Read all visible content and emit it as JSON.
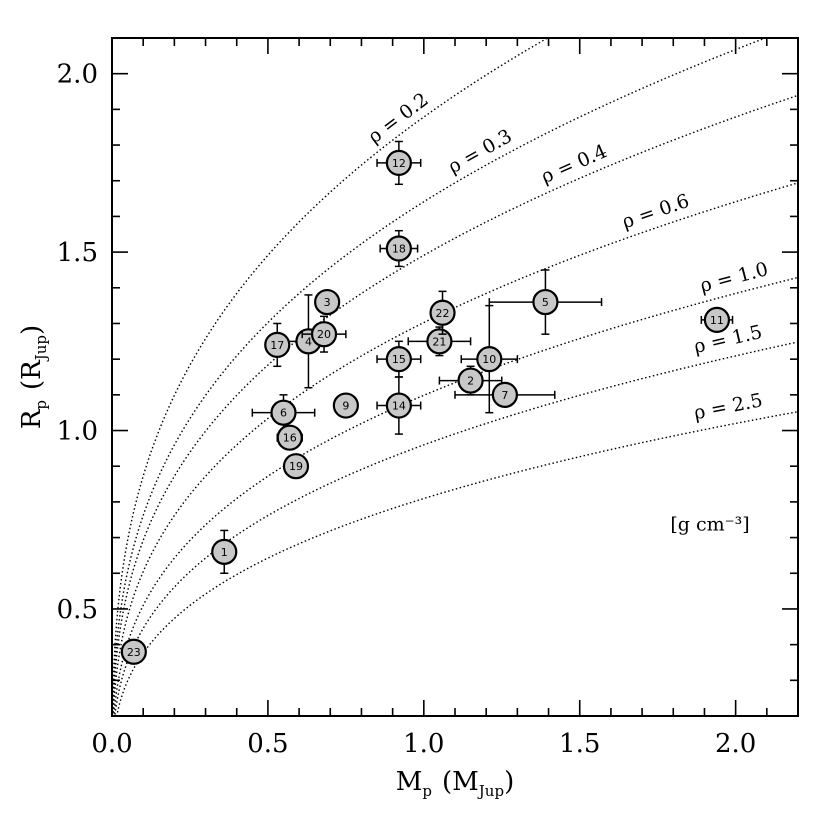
{
  "chart_data": {
    "type": "scatter",
    "title": "",
    "xlabel": {
      "main": "M",
      "sub": "p",
      "unit_prefix": "(M",
      "unit_sub": "Jup",
      "unit_suffix": ")"
    },
    "ylabel": {
      "main": "R",
      "sub": "p",
      "unit_prefix": "(R",
      "unit_sub": "Jup",
      "unit_suffix": ")"
    },
    "xlim": [
      0.0,
      2.2
    ],
    "ylim": [
      0.2,
      2.1
    ],
    "x_ticks": [
      0.0,
      0.5,
      1.0,
      1.5,
      2.0
    ],
    "x_tick_labels": [
      "0.0",
      "0.5",
      "1.0",
      "1.5",
      "2.0"
    ],
    "y_ticks": [
      0.5,
      1.0,
      1.5,
      2.0
    ],
    "y_tick_labels": [
      "0.5",
      "1.0",
      "1.5",
      "2.0"
    ],
    "x_minor_step": 0.1,
    "y_minor_step": 0.1,
    "grid": false,
    "density_curves": [
      {
        "rho": 0.2,
        "label": "ρ = 0.2"
      },
      {
        "rho": 0.3,
        "label": "ρ = 0.3"
      },
      {
        "rho": 0.4,
        "label": "ρ = 0.4"
      },
      {
        "rho": 0.6,
        "label": "ρ = 0.6"
      },
      {
        "rho": 1.0,
        "label": "ρ = 1.0"
      },
      {
        "rho": 1.5,
        "label": "ρ = 1.5"
      },
      {
        "rho": 2.5,
        "label": "ρ = 2.5"
      }
    ],
    "density_units_label": "[g cm⁻³]",
    "points": [
      {
        "id": "1",
        "x": 0.36,
        "y": 0.66,
        "xerr": 0.02,
        "yerr": 0.06
      },
      {
        "id": "2",
        "x": 1.15,
        "y": 1.14,
        "xerr": 0.1,
        "yerr": 0.04
      },
      {
        "id": "3",
        "x": 0.69,
        "y": 1.36,
        "xerr": 0.02,
        "yerr": 0.02
      },
      {
        "id": "4",
        "x": 0.63,
        "y": 1.25,
        "xerr": 0.07,
        "yerr": 0.13
      },
      {
        "id": "5",
        "x": 1.39,
        "y": 1.36,
        "xerr": 0.18,
        "yerr": 0.09
      },
      {
        "id": "6",
        "x": 0.55,
        "y": 1.05,
        "xerr": 0.1,
        "yerr": 0.05
      },
      {
        "id": "7",
        "x": 1.26,
        "y": 1.1,
        "xerr": 0.16,
        "yerr": 0.02
      },
      {
        "id": "9",
        "x": 0.75,
        "y": 1.07,
        "xerr": 0.02,
        "yerr": 0.02
      },
      {
        "id": "10",
        "x": 1.21,
        "y": 1.2,
        "xerr": 0.09,
        "yerr": 0.15
      },
      {
        "id": "11",
        "x": 1.94,
        "y": 1.31,
        "xerr": 0.05,
        "yerr": 0.02
      },
      {
        "id": "12",
        "x": 0.92,
        "y": 1.75,
        "xerr": 0.07,
        "yerr": 0.06
      },
      {
        "id": "14",
        "x": 0.92,
        "y": 1.07,
        "xerr": 0.07,
        "yerr": 0.08
      },
      {
        "id": "15",
        "x": 0.92,
        "y": 1.2,
        "xerr": 0.07,
        "yerr": 0.05
      },
      {
        "id": "16",
        "x": 0.57,
        "y": 0.98,
        "xerr": 0.04,
        "yerr": 0.02
      },
      {
        "id": "17",
        "x": 0.53,
        "y": 1.24,
        "xerr": 0.02,
        "yerr": 0.06
      },
      {
        "id": "18",
        "x": 0.92,
        "y": 1.51,
        "xerr": 0.06,
        "yerr": 0.05
      },
      {
        "id": "19",
        "x": 0.59,
        "y": 0.9,
        "xerr": 0.02,
        "yerr": 0.02
      },
      {
        "id": "20",
        "x": 0.68,
        "y": 1.27,
        "xerr": 0.07,
        "yerr": 0.05
      },
      {
        "id": "21",
        "x": 1.05,
        "y": 1.25,
        "xerr": 0.1,
        "yerr": 0.04
      },
      {
        "id": "22",
        "x": 1.06,
        "y": 1.33,
        "xerr": 0.02,
        "yerr": 0.06
      },
      {
        "id": "23",
        "x": 0.07,
        "y": 0.38,
        "xerr": 0.01,
        "yerr": 0.01
      }
    ]
  }
}
